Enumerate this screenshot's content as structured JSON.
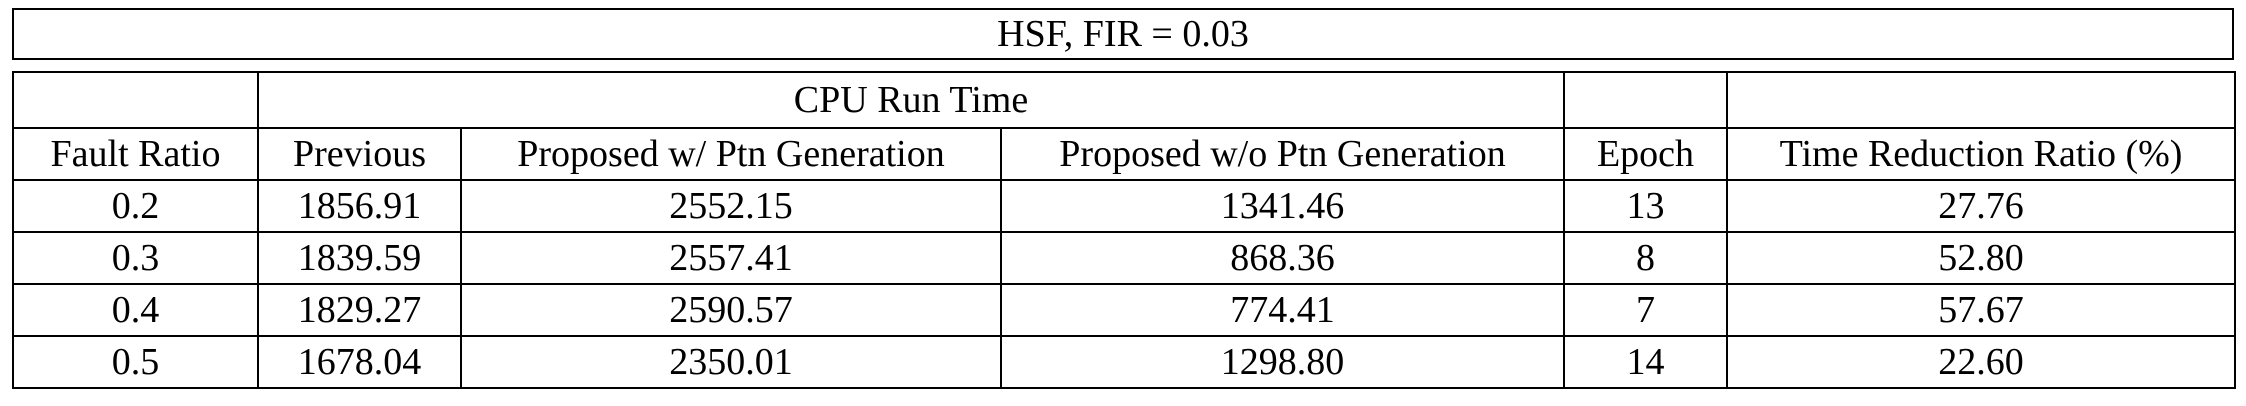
{
  "title": "HSF, FIR = 0.03",
  "group_header": "CPU Run Time",
  "columns": [
    "Fault Ratio",
    "Previous",
    "Proposed w/ Ptn Generation",
    "Proposed w/o Ptn Generation",
    "Epoch",
    "Time Reduction Ratio (%)"
  ],
  "rows": [
    [
      "0.2",
      "1856.91",
      "2552.15",
      "1341.46",
      "13",
      "27.76"
    ],
    [
      "0.3",
      "1839.59",
      "2557.41",
      "868.36",
      "8",
      "52.80"
    ],
    [
      "0.4",
      "1829.27",
      "2590.57",
      "774.41",
      "7",
      "57.67"
    ],
    [
      "0.5",
      "1678.04",
      "2350.01",
      "1298.80",
      "14",
      "22.60"
    ]
  ]
}
